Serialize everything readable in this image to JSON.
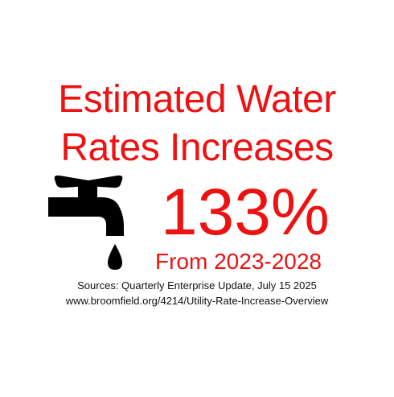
{
  "colors": {
    "accent": "#ee1111",
    "text": "#111111",
    "background": "#ffffff"
  },
  "icon": "faucet-icon",
  "title": {
    "line1": "Estimated Water",
    "line2": "Rates Increases"
  },
  "stat": {
    "value": "133%",
    "range": "From 2023-2028"
  },
  "sources": {
    "line1": "Sources: Quarterly Enterprise Update, July 15 2025",
    "line2": "www.broomfield.org/4214/Utility-Rate-Increase-Overview"
  }
}
